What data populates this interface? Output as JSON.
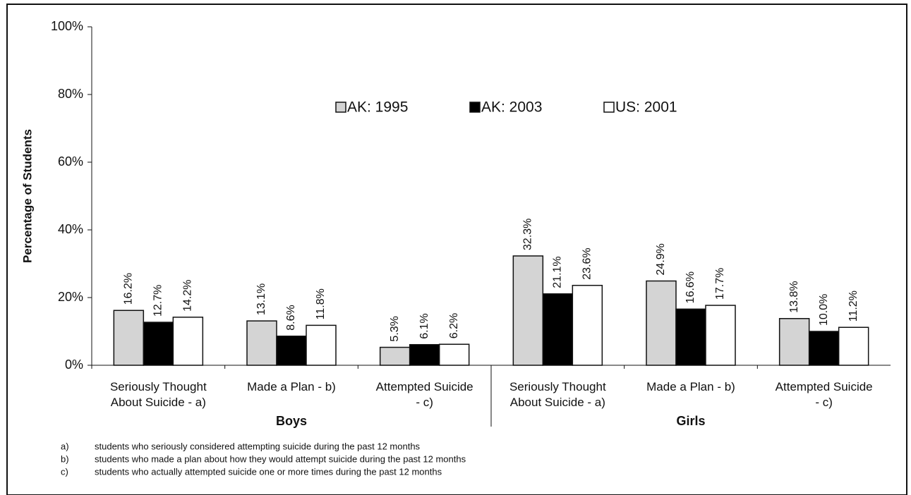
{
  "chart_data": {
    "type": "bar",
    "ylabel": "Percentage of Students",
    "categories": [
      "Seriously Thought About Suicide - a)",
      "Made a Plan - b)",
      "Attempted Suicide - c)",
      "Seriously Thought About Suicide - a)",
      "Made a Plan - b)",
      "Attempted Suicide - c)"
    ],
    "groups": [
      "Boys",
      "Girls"
    ],
    "series": [
      {
        "name": "AK: 1995",
        "color": "#d4d4d4",
        "values": [
          16.2,
          13.1,
          5.3,
          32.3,
          24.9,
          13.8
        ],
        "value_labels": [
          "16.2%",
          "13.1%",
          "5.3%",
          "32.3%",
          "24.9%",
          "13.8%"
        ]
      },
      {
        "name": "AK: 2003",
        "color": "#000000",
        "values": [
          12.7,
          8.6,
          6.1,
          21.1,
          16.6,
          10.0
        ],
        "value_labels": [
          "12.7%",
          "8.6%",
          "6.1%",
          "21.1%",
          "16.6%",
          "10.0%"
        ]
      },
      {
        "name": "US: 2001",
        "color": "#ffffff",
        "values": [
          14.2,
          11.8,
          6.2,
          23.6,
          17.7,
          11.2
        ],
        "value_labels": [
          "14.2%",
          "11.8%",
          "6.2%",
          "23.6%",
          "17.7%",
          "11.2%"
        ]
      }
    ],
    "ylim": [
      0,
      100
    ],
    "yticks": [
      {
        "value": 0,
        "label": "0%"
      },
      {
        "value": 20,
        "label": "20%"
      },
      {
        "value": 40,
        "label": "40%"
      },
      {
        "value": 60,
        "label": "60%"
      },
      {
        "value": 80,
        "label": "80%"
      },
      {
        "value": 100,
        "label": "100%"
      }
    ],
    "grid": false,
    "legend": "top",
    "footnotes": [
      {
        "marker": "a)",
        "text": "students who seriously considered attempting suicide during the past 12 months"
      },
      {
        "marker": "b)",
        "text": "students who made a  plan about how they would attempt suicide during the past 12 months"
      },
      {
        "marker": "c)",
        "text": "students who actually attempted suicide one or more times during the past 12 months"
      }
    ]
  }
}
